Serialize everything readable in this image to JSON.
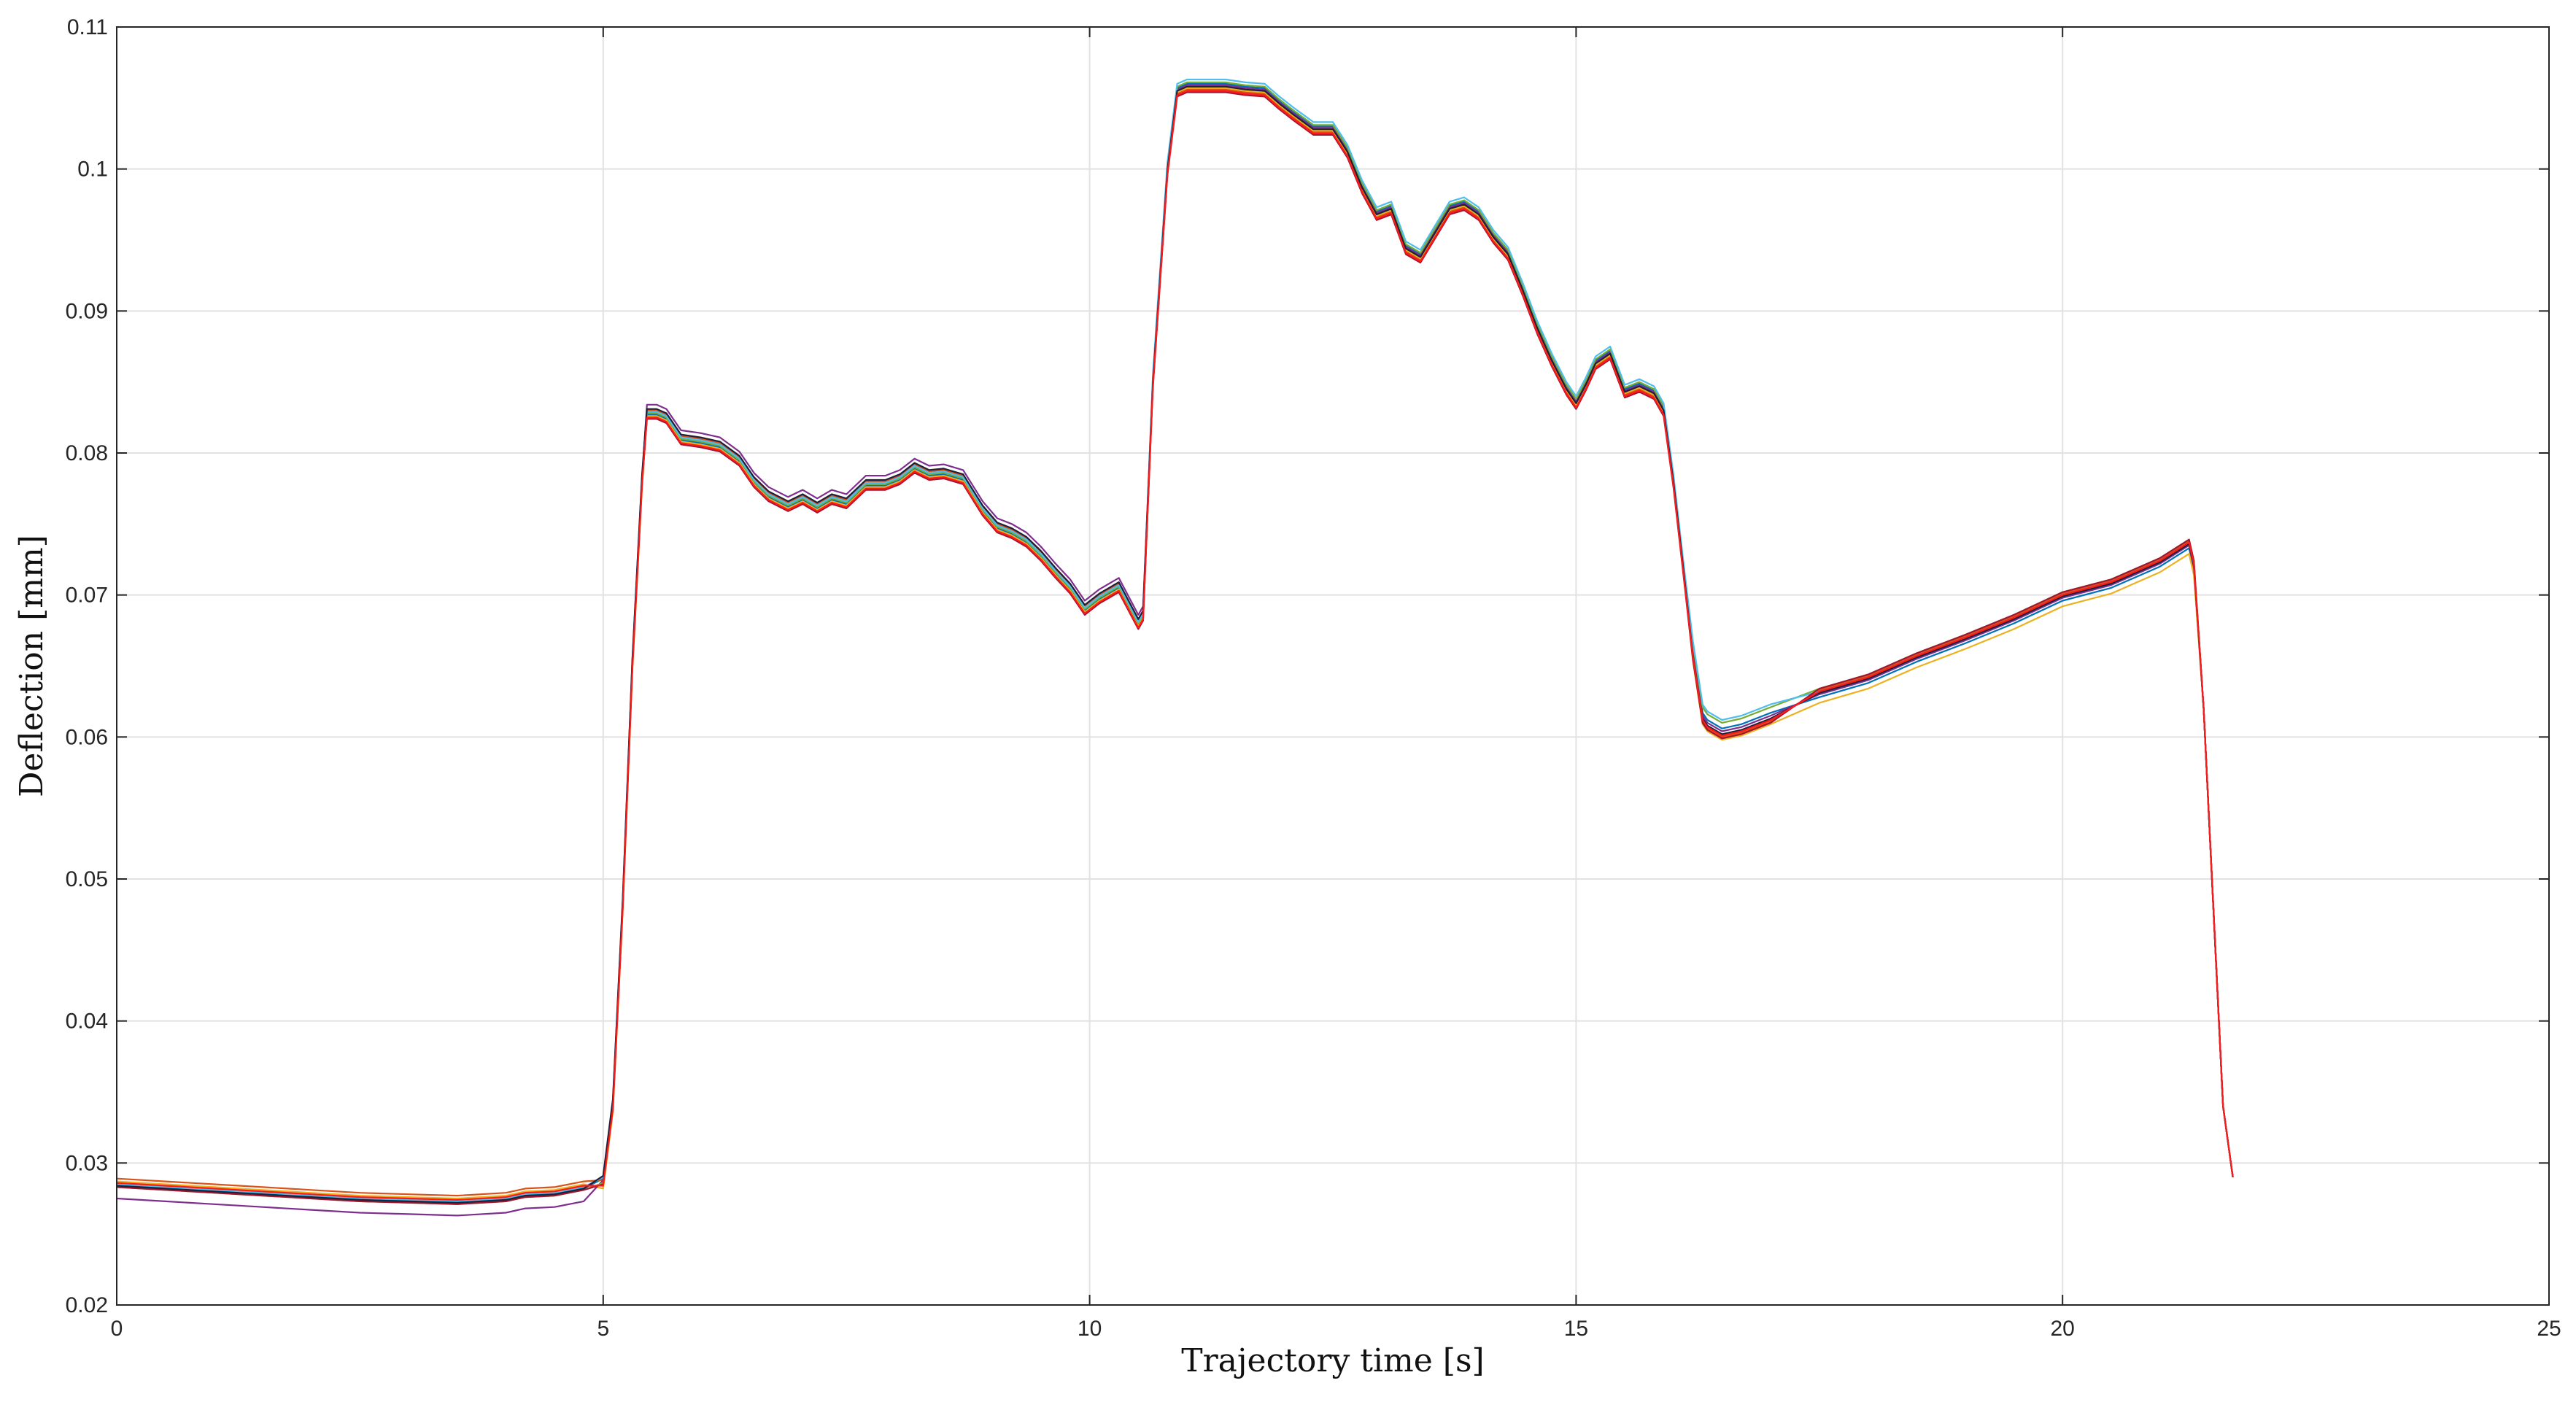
{
  "chart_data": {
    "type": "line",
    "title": "",
    "xlabel": "Trajectory time [s]",
    "ylabel": "Deflection [mm]",
    "xlim": [
      0,
      25
    ],
    "ylim": [
      0.02,
      0.11
    ],
    "xticks": [
      0,
      5,
      10,
      15,
      20,
      25
    ],
    "yticks": [
      0.02,
      0.03,
      0.04,
      0.05,
      0.06,
      0.07,
      0.08,
      0.09,
      0.1,
      0.11
    ],
    "xtick_labels": [
      "0",
      "5",
      "10",
      "15",
      "20",
      "25"
    ],
    "ytick_labels": [
      "0.02",
      "0.03",
      "0.04",
      "0.05",
      "0.06",
      "0.07",
      "0.08",
      "0.09",
      "0.1",
      "0.11"
    ],
    "grid": true,
    "legend": "none",
    "base_x": [
      0,
      0.5,
      1,
      1.5,
      2,
      2.5,
      3,
      3.5,
      4,
      4.2,
      4.5,
      4.8,
      5.0,
      5.1,
      5.2,
      5.3,
      5.4,
      5.45,
      5.55,
      5.65,
      5.8,
      6.0,
      6.2,
      6.4,
      6.55,
      6.7,
      6.9,
      7.05,
      7.2,
      7.35,
      7.5,
      7.7,
      7.9,
      8.05,
      8.2,
      8.35,
      8.5,
      8.7,
      8.9,
      9.05,
      9.2,
      9.35,
      9.5,
      9.65,
      9.8,
      9.95,
      10.1,
      10.3,
      10.5,
      10.55,
      10.65,
      10.8,
      10.9,
      11.0,
      11.2,
      11.4,
      11.6,
      11.8,
      11.95,
      12.1,
      12.3,
      12.5,
      12.65,
      12.8,
      12.95,
      13.1,
      13.25,
      13.4,
      13.55,
      13.7,
      13.85,
      14.0,
      14.15,
      14.3,
      14.45,
      14.6,
      14.75,
      14.9,
      15.0,
      15.1,
      15.2,
      15.35,
      15.5,
      15.65,
      15.8,
      15.9,
      16.0,
      16.1,
      16.2,
      16.3,
      16.35,
      16.5,
      16.7,
      17.0,
      17.5,
      18.0,
      18.5,
      19.0,
      19.5,
      20.0,
      20.5,
      21.0,
      21.3,
      21.35,
      21.45,
      21.55,
      21.65,
      21.75
    ],
    "base_y": [
      0.0284,
      0.0282,
      0.028,
      0.0278,
      0.0276,
      0.0274,
      0.0273,
      0.0272,
      0.0274,
      0.0277,
      0.0278,
      0.0282,
      0.0286,
      0.034,
      0.048,
      0.065,
      0.078,
      0.0828,
      0.0828,
      0.0825,
      0.081,
      0.0808,
      0.0805,
      0.0795,
      0.078,
      0.077,
      0.0763,
      0.0768,
      0.0762,
      0.0768,
      0.0765,
      0.0778,
      0.0778,
      0.0782,
      0.079,
      0.0785,
      0.0786,
      0.0782,
      0.076,
      0.0748,
      0.0744,
      0.0738,
      0.0728,
      0.0716,
      0.0705,
      0.069,
      0.0698,
      0.0706,
      0.068,
      0.0686,
      0.085,
      0.1,
      0.1055,
      0.1058,
      0.1058,
      0.1058,
      0.1056,
      0.1055,
      0.1046,
      0.1038,
      0.1028,
      0.1028,
      0.1012,
      0.0987,
      0.0968,
      0.0972,
      0.0944,
      0.0938,
      0.0955,
      0.0972,
      0.0975,
      0.0968,
      0.0952,
      0.094,
      0.0915,
      0.0888,
      0.0865,
      0.0845,
      0.0835,
      0.0848,
      0.0863,
      0.087,
      0.0843,
      0.0847,
      0.0842,
      0.083,
      0.078,
      0.072,
      0.066,
      0.0615,
      0.061,
      0.0604,
      0.0607,
      0.0615,
      0.063,
      0.064,
      0.0655,
      0.0668,
      0.0682,
      0.0698,
      0.0707,
      0.0722,
      0.0735,
      0.072,
      0.062,
      0.048,
      0.034,
      0.029
    ],
    "series": [
      {
        "color": "#0072BD",
        "offsets": {
          "start": 0.0,
          "rise": 0.0003,
          "mid": -0.0001,
          "peak": 0.0002,
          "low": 0.0002,
          "ramp": -0.0002
        }
      },
      {
        "color": "#D95319",
        "offsets": {
          "start": 0.0005,
          "rise": 0.0002,
          "mid": 0.0002,
          "peak": -0.0002,
          "low": -0.0004,
          "ramp": 0.0003
        }
      },
      {
        "color": "#EDB120",
        "offsets": {
          "start": 0.0003,
          "rise": -0.0004,
          "mid": -0.0002,
          "peak": -0.0001,
          "low": -0.0006,
          "ramp": -0.0006
        }
      },
      {
        "color": "#7E2F8E",
        "offsets": {
          "start": -0.0009,
          "rise": 0.0002,
          "mid": 0.0006,
          "peak": 0.0001,
          "low": 0.0,
          "ramp": 0.0
        }
      },
      {
        "color": "#77AC30",
        "offsets": {
          "start": -0.0001,
          "rise": 0.0,
          "mid": 0.0,
          "peak": 0.0003,
          "low": 0.0006,
          "ramp": 0.0004
        }
      },
      {
        "color": "#4DBEEE",
        "offsets": {
          "start": 0.0001,
          "rise": 0.0004,
          "mid": 0.0001,
          "peak": 0.0005,
          "low": 0.0008,
          "ramp": 0.0002
        }
      },
      {
        "color": "#A2142F",
        "offsets": {
          "start": -0.0001,
          "rise": -0.0001,
          "mid": -0.0004,
          "peak": -0.0004,
          "low": -0.0005,
          "ramp": 0.0004
        }
      },
      {
        "color": "#1f1f3a",
        "offsets": {
          "start": 0.0,
          "rise": 0.0005,
          "mid": 0.0003,
          "peak": 0.0,
          "low": -0.0002,
          "ramp": 0.0001
        }
      },
      {
        "color": "#ff1a1a",
        "offsets": {
          "start": 0.0002,
          "rise": -0.0002,
          "mid": -0.0003,
          "peak": -0.0003,
          "low": -0.0003,
          "ramp": 0.0002
        }
      }
    ]
  }
}
